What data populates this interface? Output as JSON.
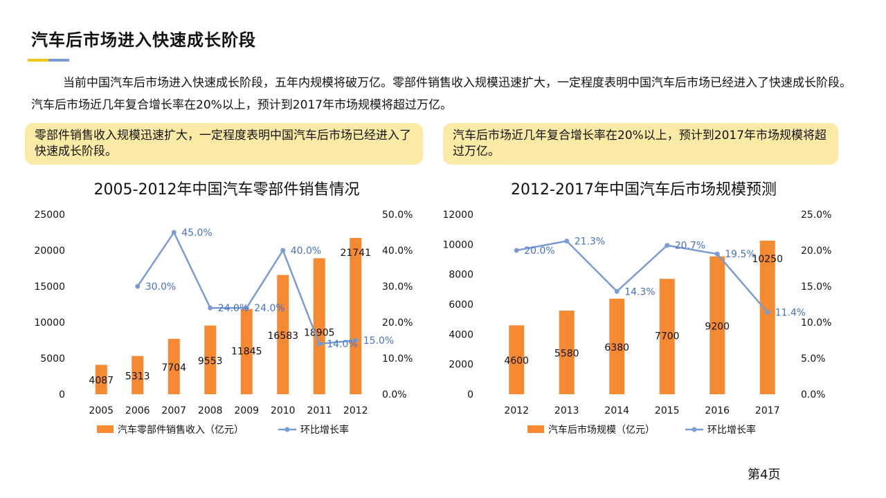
{
  "title": "汽车后市场进入快速成长阶段",
  "intro": "当前中国汽车后市场进入快速成长阶段，五年内规模将破万亿。零部件销售收入规模迅速扩大，一定程度表明中国汽车后市场已经进入了快速成长阶段。汽车后市场近几年复合增长率在20%以上，预计到2017年市场规模将超过万亿。",
  "callouts": {
    "left": "零部件销售收入规模迅速扩大，一定程度表明中国汽车后市场已经进入了快速成长阶段。",
    "right": "汽车后市场近几年复合增长率在20%以上，预计到2017年市场规模将超过万亿。"
  },
  "colors": {
    "bar": "#f58a32",
    "line": "#7b9bd4",
    "label_line": "#4472c4",
    "accent_yellow": "#f5c518",
    "accent_blue": "#7b9bd4",
    "callout_bg": "#fbeaa5"
  },
  "page_number": "第4页",
  "chart_data": [
    {
      "type": "bar",
      "title": "2005-2012年中国汽车零部件销售情况",
      "categories": [
        "2005",
        "2006",
        "2007",
        "2008",
        "2009",
        "2010",
        "2011",
        "2012"
      ],
      "series": [
        {
          "name": "汽车零部件销售收入（亿元）",
          "type": "bar",
          "axis": "left",
          "values": [
            4087,
            5313,
            7704,
            9553,
            11845,
            16583,
            18905,
            21741
          ],
          "labels": [
            "4087",
            "5313",
            "7704",
            "9553",
            "11845",
            "16583",
            "18905",
            "21741"
          ]
        },
        {
          "name": "环比增长率",
          "type": "line",
          "axis": "right",
          "values": [
            null,
            30.0,
            45.0,
            24.0,
            24.0,
            40.0,
            14.0,
            15.0
          ],
          "labels": [
            "",
            "30.0%",
            "45.0%",
            "24.0%",
            "24.0%",
            "40.0%",
            "14.0%",
            "15.0%"
          ]
        }
      ],
      "ylim": [
        0,
        25000
      ],
      "yticks": [
        "0",
        "5000",
        "10000",
        "15000",
        "20000",
        "25000"
      ],
      "y2lim": [
        0,
        50
      ],
      "y2ticks": [
        "0.0%",
        "10.0%",
        "20.0%",
        "30.0%",
        "40.0%",
        "50.0%"
      ],
      "grid": false,
      "legend": "bottom"
    },
    {
      "type": "bar",
      "title": "2012-2017年中国汽车后市场规模预测",
      "categories": [
        "2012",
        "2013",
        "2014",
        "2015",
        "2016",
        "2017"
      ],
      "series": [
        {
          "name": "汽车后市场规模（亿元）",
          "type": "bar",
          "axis": "left",
          "values": [
            4600,
            5580,
            6380,
            7700,
            9200,
            10250
          ],
          "labels": [
            "4600",
            "5580",
            "6380",
            "7700",
            "9200",
            "10250"
          ]
        },
        {
          "name": "环比增长率",
          "type": "line",
          "axis": "right",
          "values": [
            20.0,
            21.3,
            14.3,
            20.7,
            19.5,
            11.4
          ],
          "labels": [
            "20.0%",
            "21.3%",
            "14.3%",
            "20.7%",
            "19.5%",
            "11.4%"
          ]
        }
      ],
      "ylim": [
        0,
        12000
      ],
      "yticks": [
        "0",
        "2000",
        "4000",
        "6000",
        "8000",
        "10000",
        "12000"
      ],
      "y2lim": [
        0,
        25
      ],
      "y2ticks": [
        "0.0%",
        "5.0%",
        "10.0%",
        "15.0%",
        "20.0%",
        "25.0%"
      ],
      "grid": false,
      "legend": "bottom"
    }
  ]
}
